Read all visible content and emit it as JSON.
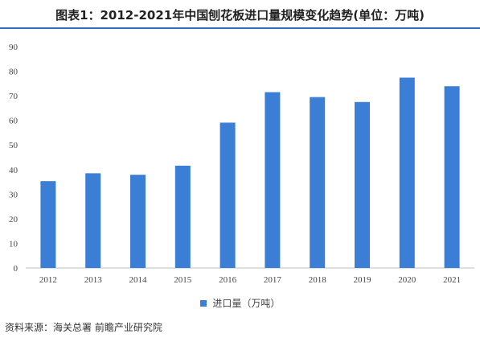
{
  "title": "图表1：2012-2021年中国刨花板进口量规模变化趋势(单位：万吨)",
  "source": "资料来源：海关总署 前瞻产业研究院",
  "colors": {
    "bar": "#3a7fd5",
    "axis": "#bfbfbf"
  },
  "chart_data": {
    "type": "bar",
    "categories": [
      "2012",
      "2013",
      "2014",
      "2015",
      "2016",
      "2017",
      "2018",
      "2019",
      "2020",
      "2021"
    ],
    "series": [
      {
        "name": "进口量（万吨）",
        "values": [
          35.3,
          38.5,
          37.9,
          41.6,
          59.1,
          71.5,
          69.5,
          67.5,
          77.4,
          73.9
        ]
      }
    ],
    "yticks": [
      "0",
      "10",
      "20",
      "30",
      "40",
      "50",
      "60",
      "70",
      "80",
      "90"
    ],
    "ylim": [
      0,
      90
    ],
    "grid": false,
    "legend": "bottom"
  }
}
